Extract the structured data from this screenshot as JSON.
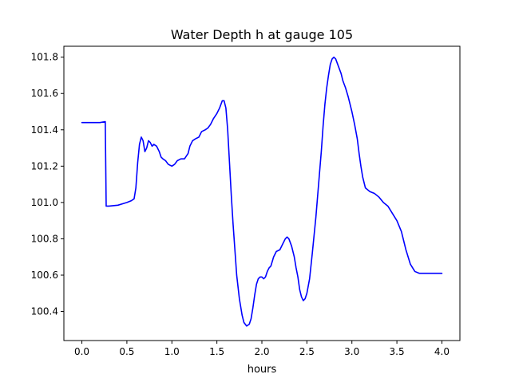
{
  "chart_data": {
    "type": "line",
    "title": "Water Depth h at gauge 105",
    "xlabel": "hours",
    "ylabel": "",
    "xlim": [
      -0.2,
      4.2
    ],
    "ylim": [
      100.24,
      101.86
    ],
    "xticks": [
      0.0,
      0.5,
      1.0,
      1.5,
      2.0,
      2.5,
      3.0,
      3.5,
      4.0
    ],
    "xtick_labels": [
      "0.0",
      "0.5",
      "1.0",
      "1.5",
      "2.0",
      "2.5",
      "3.0",
      "3.5",
      "4.0"
    ],
    "yticks": [
      100.4,
      100.6,
      100.8,
      101.0,
      101.2,
      101.4,
      101.6,
      101.8
    ],
    "ytick_labels": [
      "100.4",
      "100.6",
      "100.8",
      "101.0",
      "101.2",
      "101.4",
      "101.6",
      "101.8"
    ],
    "grid": false,
    "series": [
      {
        "color": "#0000ff",
        "x": [
          0.0,
          0.1,
          0.2,
          0.26,
          0.27,
          0.3,
          0.4,
          0.5,
          0.55,
          0.58,
          0.6,
          0.62,
          0.64,
          0.66,
          0.68,
          0.7,
          0.72,
          0.74,
          0.76,
          0.78,
          0.8,
          0.83,
          0.86,
          0.88,
          0.9,
          0.93,
          0.96,
          1.0,
          1.03,
          1.06,
          1.1,
          1.14,
          1.18,
          1.2,
          1.23,
          1.26,
          1.3,
          1.33,
          1.37,
          1.4,
          1.43,
          1.46,
          1.5,
          1.53,
          1.56,
          1.58,
          1.6,
          1.62,
          1.64,
          1.66,
          1.68,
          1.7,
          1.72,
          1.75,
          1.78,
          1.8,
          1.83,
          1.86,
          1.88,
          1.9,
          1.92,
          1.94,
          1.96,
          1.98,
          2.0,
          2.02,
          2.04,
          2.06,
          2.08,
          2.1,
          2.13,
          2.16,
          2.2,
          2.23,
          2.26,
          2.28,
          2.3,
          2.33,
          2.36,
          2.38,
          2.4,
          2.42,
          2.44,
          2.46,
          2.48,
          2.5,
          2.53,
          2.56,
          2.6,
          2.63,
          2.66,
          2.68,
          2.7,
          2.72,
          2.74,
          2.76,
          2.78,
          2.8,
          2.82,
          2.85,
          2.88,
          2.9,
          2.93,
          2.96,
          3.0,
          3.03,
          3.06,
          3.08,
          3.1,
          3.12,
          3.15,
          3.2,
          3.25,
          3.3,
          3.35,
          3.4,
          3.45,
          3.5,
          3.55,
          3.58,
          3.6,
          3.65,
          3.7,
          3.75,
          3.8,
          3.85,
          3.9,
          3.95,
          3.98,
          4.0
        ],
        "y": [
          101.44,
          101.44,
          101.44,
          101.445,
          100.98,
          100.98,
          100.985,
          101.0,
          101.01,
          101.02,
          101.08,
          101.22,
          101.32,
          101.36,
          101.34,
          101.28,
          101.3,
          101.34,
          101.33,
          101.31,
          101.32,
          101.31,
          101.28,
          101.25,
          101.24,
          101.23,
          101.21,
          101.2,
          101.21,
          101.23,
          101.24,
          101.24,
          101.27,
          101.31,
          101.34,
          101.35,
          101.36,
          101.39,
          101.4,
          101.41,
          101.43,
          101.46,
          101.49,
          101.52,
          101.56,
          101.56,
          101.52,
          101.4,
          101.22,
          101.04,
          100.88,
          100.74,
          100.6,
          100.47,
          100.38,
          100.34,
          100.32,
          100.33,
          100.36,
          100.42,
          100.49,
          100.55,
          100.58,
          100.59,
          100.59,
          100.58,
          100.59,
          100.62,
          100.64,
          100.65,
          100.7,
          100.73,
          100.74,
          100.77,
          100.8,
          100.81,
          100.8,
          100.76,
          100.7,
          100.64,
          100.59,
          100.52,
          100.48,
          100.46,
          100.47,
          100.5,
          100.58,
          100.72,
          100.92,
          101.1,
          101.28,
          101.42,
          101.54,
          101.63,
          101.7,
          101.76,
          101.79,
          101.8,
          101.79,
          101.75,
          101.71,
          101.67,
          101.63,
          101.58,
          101.5,
          101.43,
          101.35,
          101.27,
          101.2,
          101.14,
          101.08,
          101.06,
          101.05,
          101.03,
          101.0,
          100.98,
          100.94,
          100.9,
          100.84,
          100.78,
          100.74,
          100.66,
          100.62,
          100.61,
          100.61,
          100.61,
          100.61,
          100.61,
          100.61,
          100.61
        ]
      }
    ]
  }
}
